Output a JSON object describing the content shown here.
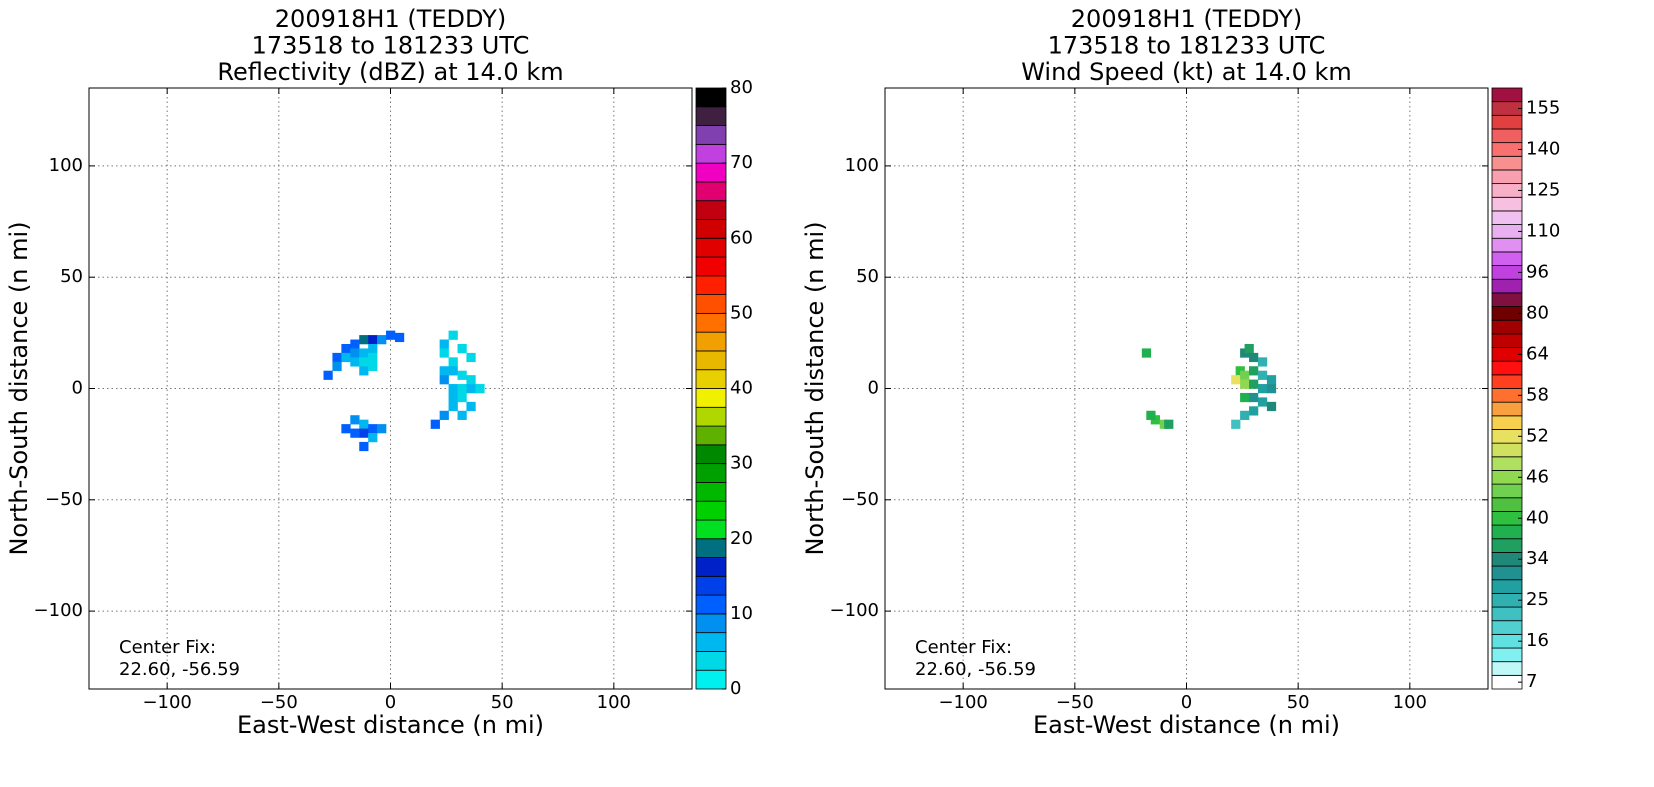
{
  "chart_data": [
    {
      "type": "heatmap",
      "title": [
        "200918H1 (TEDDY)",
        "173518 to 181233 UTC",
        "Reflectivity (dBZ) at 14.0 km"
      ],
      "xlabel": "East-West distance (n mi)",
      "ylabel": "North-South distance (n mi)",
      "xlim": [
        -135,
        135
      ],
      "ylim": [
        -135,
        135
      ],
      "xticks": [
        {
          "value": -100,
          "label": "−100"
        },
        {
          "value": -50,
          "label": "−50"
        },
        0,
        50,
        100
      ],
      "yticks": [
        {
          "value": -100,
          "label": "−100"
        },
        {
          "value": -50,
          "label": "−50"
        },
        0,
        50,
        100
      ],
      "grid": true,
      "annotations": [
        "Center Fix:",
        "22.60, -56.59"
      ],
      "x": [
        -24,
        -20,
        -16,
        -12,
        -8,
        -4,
        0,
        4,
        -20,
        -16,
        -12,
        -8,
        -16,
        -12,
        -8,
        -24,
        -28,
        -12,
        -8,
        -16,
        -12,
        -8,
        -4,
        -12,
        -16,
        -20,
        -8,
        -12,
        24,
        28,
        32,
        36,
        24,
        28,
        24,
        28,
        32,
        36,
        24,
        28,
        32,
        36,
        40,
        28,
        32,
        36,
        28,
        24,
        20,
        32
      ],
      "y": [
        14,
        18,
        20,
        22,
        22,
        22,
        24,
        23,
        14,
        16,
        16,
        18,
        12,
        12,
        14,
        10,
        6,
        8,
        10,
        -14,
        -16,
        -18,
        -18,
        -20,
        -20,
        -18,
        -22,
        -26,
        20,
        24,
        18,
        14,
        16,
        12,
        8,
        8,
        6,
        4,
        4,
        0,
        0,
        0,
        0,
        -4,
        -4,
        -8,
        -8,
        -12,
        -16,
        -12
      ],
      "values": [
        10,
        10,
        12,
        18,
        15,
        8,
        10,
        10,
        5,
        8,
        5,
        5,
        5,
        3,
        3,
        8,
        10,
        5,
        3,
        8,
        5,
        10,
        8,
        13,
        10,
        10,
        5,
        10,
        5,
        3,
        3,
        3,
        3,
        3,
        5,
        5,
        3,
        3,
        8,
        5,
        3,
        5,
        3,
        5,
        3,
        5,
        5,
        8,
        10,
        5
      ],
      "colorbar": {
        "lim": [
          0,
          80
        ],
        "ticks": [
          0,
          10,
          20,
          30,
          40,
          50,
          60,
          70,
          80
        ],
        "colors": [
          "#00f0f0",
          "#00d8e8",
          "#00b8f0",
          "#0090f0",
          "#0060ff",
          "#0040e8",
          "#0020c8",
          "#007080",
          "#00e020",
          "#00d000",
          "#00b800",
          "#00a000",
          "#008800",
          "#60b000",
          "#b0d800",
          "#f0f000",
          "#e8d000",
          "#e8b800",
          "#f0a000",
          "#ff7000",
          "#ff5000",
          "#ff2000",
          "#f00000",
          "#e00000",
          "#d00000",
          "#c00010",
          "#e00070",
          "#f000c0",
          "#c040e0",
          "#8040b0",
          "#402040",
          "#000000"
        ]
      }
    },
    {
      "type": "heatmap",
      "title": [
        "200918H1 (TEDDY)",
        "173518 to 181233 UTC",
        "Wind Speed (kt) at 14.0 km"
      ],
      "xlabel": "East-West distance (n mi)",
      "ylabel": "North-South distance (n mi)",
      "xlim": [
        -135,
        135
      ],
      "ylim": [
        -135,
        135
      ],
      "xticks": [
        {
          "value": -100,
          "label": "−100"
        },
        {
          "value": -50,
          "label": "−50"
        },
        0,
        50,
        100
      ],
      "yticks": [
        {
          "value": -100,
          "label": "−100"
        },
        {
          "value": -50,
          "label": "−50"
        },
        0,
        50,
        100
      ],
      "grid": true,
      "annotations": [
        "Center Fix:",
        "22.60, -56.59"
      ],
      "x": [
        26,
        28,
        30,
        34,
        24,
        22,
        26,
        30,
        34,
        38,
        26,
        30,
        34,
        38,
        26,
        30,
        34,
        38,
        30,
        26,
        22,
        -14,
        -10,
        -16,
        -8,
        -18
      ],
      "y": [
        16,
        18,
        14,
        12,
        8,
        4,
        6,
        8,
        6,
        4,
        2,
        2,
        0,
        0,
        -4,
        -4,
        -6,
        -8,
        -10,
        -12,
        -16,
        -14,
        -16,
        -12,
        -16,
        16
      ],
      "values": [
        34,
        36,
        34,
        25,
        40,
        52,
        44,
        36,
        25,
        28,
        46,
        36,
        28,
        31,
        38,
        31,
        28,
        34,
        28,
        25,
        22,
        40,
        44,
        38,
        36,
        38
      ],
      "colorbar": {
        "levels": [
          7,
          10,
          13,
          16,
          19,
          22,
          25,
          28,
          31,
          34,
          36,
          38,
          40,
          42,
          44,
          46,
          48,
          50,
          52,
          54,
          56,
          58,
          60,
          62,
          64,
          69,
          74,
          80,
          85,
          90,
          96,
          101,
          106,
          110,
          115,
          120,
          125,
          130,
          135,
          140,
          145,
          150,
          155,
          160
        ],
        "ticks": [
          7,
          16,
          25,
          34,
          40,
          46,
          52,
          58,
          64,
          80,
          96,
          110,
          125,
          140,
          155
        ],
        "colors": [
          "#ffffff",
          "#c0f8f8",
          "#80f0f0",
          "#60e0e0",
          "#50d0d0",
          "#40c0c0",
          "#30b0b0",
          "#20a0a0",
          "#209090",
          "#208878",
          "#20a060",
          "#20b050",
          "#30c040",
          "#50c040",
          "#70d050",
          "#90d850",
          "#b0e060",
          "#d0e060",
          "#e8e060",
          "#f8d050",
          "#f8a040",
          "#ff7030",
          "#ff4020",
          "#ff1010",
          "#e00000",
          "#c00000",
          "#a00000",
          "#700000",
          "#801040",
          "#a020b0",
          "#c040e0",
          "#d060f0",
          "#e090f0",
          "#e8b0f0",
          "#f0c0f0",
          "#f8c0e0",
          "#f8b0c8",
          "#f8a0b0",
          "#f89090",
          "#f87070",
          "#f06060",
          "#e04040",
          "#c03040",
          "#a01040"
        ]
      }
    }
  ]
}
